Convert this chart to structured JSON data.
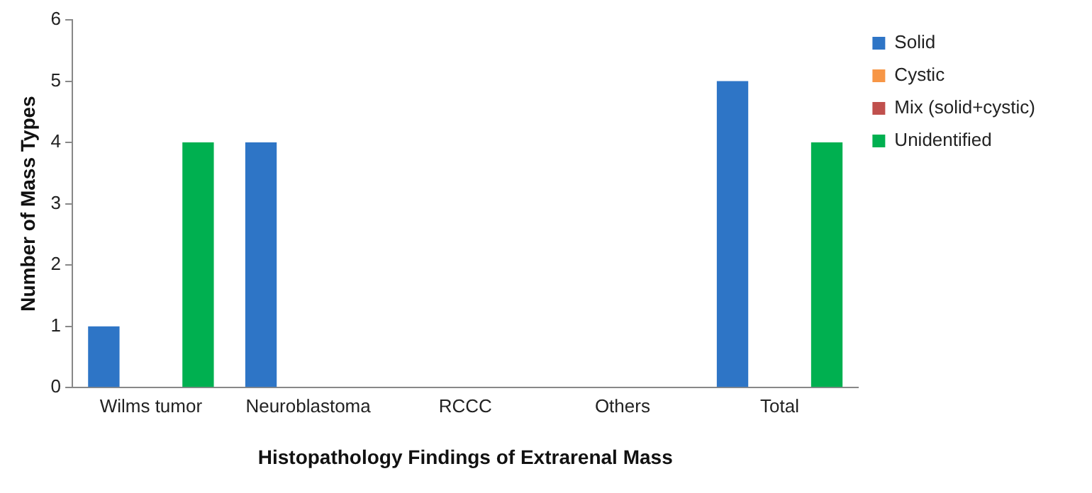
{
  "chart_data": {
    "type": "bar",
    "xlabel": "Histopathology Findings of Extrarenal Mass",
    "ylabel": "Number of Mass Types",
    "categories": [
      "Wilms tumor",
      "Neuroblastoma",
      "RCCC",
      "Others",
      "Total"
    ],
    "series": [
      {
        "name": "Solid",
        "color": "#2e75c6",
        "values": [
          1,
          4,
          0,
          0,
          5
        ]
      },
      {
        "name": "Cystic",
        "color": "#f79646",
        "values": [
          0,
          0,
          0,
          0,
          0
        ]
      },
      {
        "name": "Mix (solid+cystic)",
        "color": "#c0504d",
        "values": [
          0,
          0,
          0,
          0,
          0
        ]
      },
      {
        "name": "Unidentified",
        "color": "#00b050",
        "values": [
          4,
          0,
          0,
          0,
          4
        ]
      }
    ],
    "ylim": [
      0,
      6
    ],
    "yticks": [
      0,
      1,
      2,
      3,
      4,
      5,
      6
    ],
    "grid": false,
    "legend": "right"
  }
}
